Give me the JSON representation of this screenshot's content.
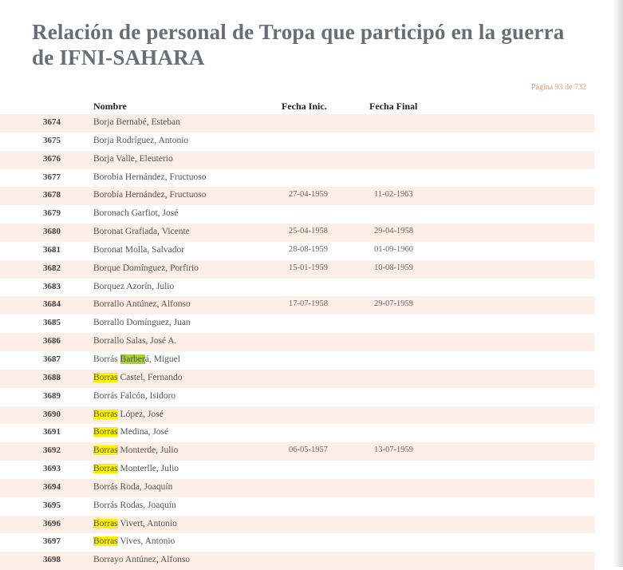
{
  "title": "Relación de personal de Tropa que participó en la guerra de IFNI-SAHARA",
  "page_label": "Página 93 de 732",
  "columns": {
    "name": "Nombre",
    "start": "Fecha Inic.",
    "end": "Fecha Final"
  },
  "rows": [
    {
      "num": "3674",
      "name": "Borja Bernabé, Esteban",
      "start": "",
      "end": ""
    },
    {
      "num": "3675",
      "name": "Borja Rodríguez, Antonio",
      "start": "",
      "end": ""
    },
    {
      "num": "3676",
      "name": "Borja Valle, Eleuterio",
      "start": "",
      "end": ""
    },
    {
      "num": "3677",
      "name": "Borobia Hernández, Fructuoso",
      "start": "",
      "end": ""
    },
    {
      "num": "3678",
      "name": "Borobía Hernández, Fructuoso",
      "start": "27-04-1959",
      "end": "11-02-1963"
    },
    {
      "num": "3679",
      "name": "Boronach Garfiot, José",
      "start": "",
      "end": ""
    },
    {
      "num": "3680",
      "name": "Boronat Grafiada, Vicente",
      "start": "25-04-1958",
      "end": "29-04-1958"
    },
    {
      "num": "3681",
      "name": "Boronat Molla, Salvador",
      "start": "28-08-1959",
      "end": "01-09-1960"
    },
    {
      "num": "3682",
      "name": "Borque Domínguez, Porfirio",
      "start": "15-01-1959",
      "end": "10-08-1959"
    },
    {
      "num": "3683",
      "name": "Borquez Azorín, Julio",
      "start": "",
      "end": ""
    },
    {
      "num": "3684",
      "name": "Borrallo Antúnez, Alfonso",
      "start": "17-07-1958",
      "end": "29-07-1959"
    },
    {
      "num": "3685",
      "name": "Borrallo Domínguez, Juan",
      "start": "",
      "end": ""
    },
    {
      "num": "3686",
      "name": "Borrallo Salas, José A.",
      "start": "",
      "end": ""
    },
    {
      "num": "3687",
      "name_pre": "Borrás ",
      "name_hl": "Barber",
      "name_rest": "á, Miguel",
      "hl": "green",
      "start": "",
      "end": ""
    },
    {
      "num": "3688",
      "name_pre": "",
      "name_hl": "Borras",
      "name_rest": " Castel, Fernando",
      "hl": "yellow",
      "start": "",
      "end": ""
    },
    {
      "num": "3689",
      "name": "Borrás Falcón, Isidoro",
      "start": "",
      "end": ""
    },
    {
      "num": "3690",
      "name_pre": "",
      "name_hl": "Borras",
      "name_rest": " López, José",
      "hl": "yellow",
      "start": "",
      "end": ""
    },
    {
      "num": "3691",
      "name_pre": "",
      "name_hl": "Borras",
      "name_rest": " Medina, José",
      "hl": "yellow",
      "start": "",
      "end": ""
    },
    {
      "num": "3692",
      "name_pre": "",
      "name_hl": "Borras",
      "name_rest": " Monterde, Julio",
      "hl": "yellow",
      "start": "06-05-1957",
      "end": "13-07-1959"
    },
    {
      "num": "3693",
      "name_pre": "",
      "name_hl": "Borras",
      "name_rest": " Monterlle, Julio",
      "hl": "yellow",
      "start": "",
      "end": ""
    },
    {
      "num": "3694",
      "name": "Borrás Roda, Joaquín",
      "start": "",
      "end": ""
    },
    {
      "num": "3695",
      "name": "Borrás Rodas, Joaquín",
      "start": "",
      "end": ""
    },
    {
      "num": "3696",
      "name_pre": "",
      "name_hl": "Borras",
      "name_rest": " Vivert, Antonio",
      "hl": "yellow",
      "start": "",
      "end": ""
    },
    {
      "num": "3697",
      "name_pre": "",
      "name_hl": "Borras",
      "name_rest": " Vives, Antonio",
      "hl": "yellow",
      "start": "",
      "end": ""
    },
    {
      "num": "3698",
      "name": "Borrayo Antúnez, Alfonso",
      "start": "",
      "end": ""
    }
  ],
  "colors": {
    "row_shade": "#fdeee6",
    "highlight_yellow": "#fff200",
    "highlight_green": "#a6d32f",
    "title": "#6a6d76",
    "page_label": "#f09a5a"
  }
}
